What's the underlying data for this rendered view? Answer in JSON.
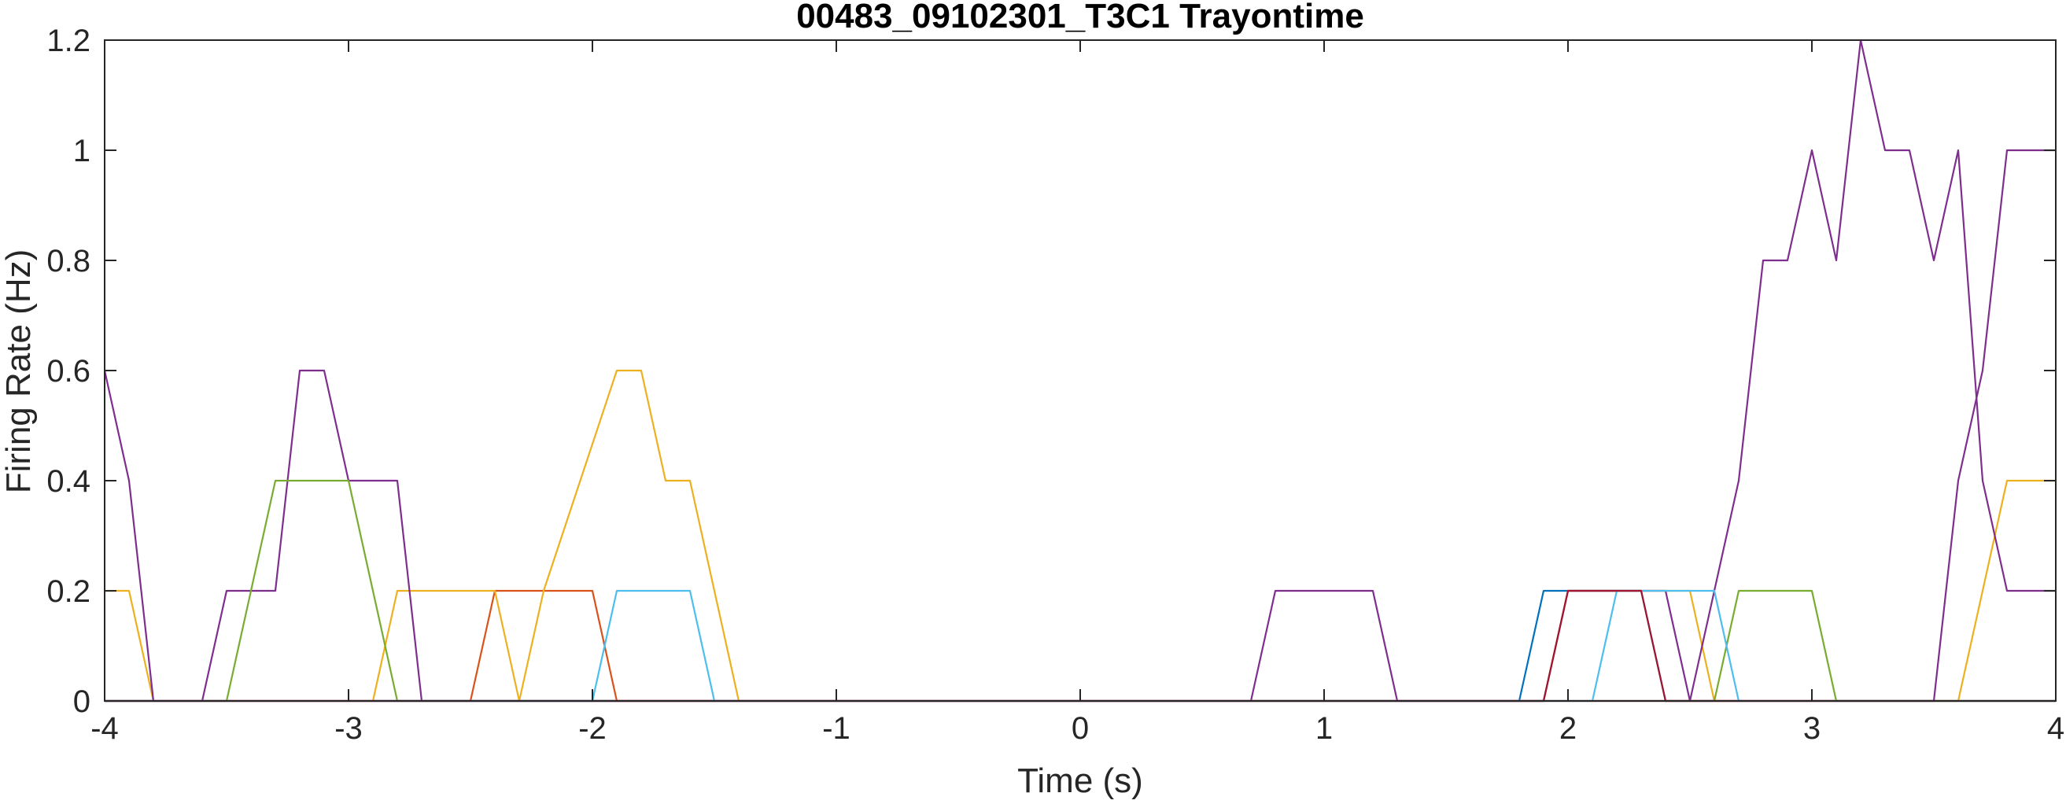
{
  "chart_data": {
    "type": "line",
    "title": "00483_09102301_T3C1 Trayontime",
    "xlabel": "Time (s)",
    "ylabel": "Firing Rate (Hz)",
    "xlim": [
      -4,
      4
    ],
    "ylim": [
      0,
      1.2
    ],
    "xticks": [
      -4,
      -3,
      -2,
      -1,
      0,
      1,
      2,
      3,
      4
    ],
    "yticks": [
      0,
      0.2,
      0.4,
      0.6,
      0.8,
      1,
      1.2
    ],
    "xtick_labels": [
      "-4",
      "-3",
      "-2",
      "-1",
      "0",
      "1",
      "2",
      "3",
      "4"
    ],
    "ytick_labels": [
      "0",
      "0.2",
      "0.4",
      "0.6",
      "0.8",
      "1",
      "1.2"
    ],
    "grid": false,
    "box": true,
    "series": [
      {
        "color": "#0072BD",
        "x": [
          -4,
          1.8,
          1.9,
          2.3,
          2.4,
          4
        ],
        "y": [
          0,
          0,
          0.2,
          0.2,
          0,
          0
        ]
      },
      {
        "color": "#D95319",
        "x": [
          -4,
          -2.5,
          -2.4,
          -2.2,
          -2.1,
          -2.0,
          -1.9,
          4
        ],
        "y": [
          0,
          0,
          0.2,
          0.2,
          0.2,
          0.2,
          0,
          0
        ]
      },
      {
        "color": "#EDB120",
        "x": [
          -4,
          -3.9,
          -3.8,
          -2.9,
          -2.8,
          -2.4,
          -2.3,
          -2.2,
          -1.9,
          -1.8,
          -1.7,
          -1.6,
          -1.4,
          1.9,
          2.0,
          2.1,
          2.3,
          2.5,
          2.6,
          3.6,
          3.7,
          3.8,
          4
        ],
        "y": [
          0.2,
          0.2,
          0,
          0,
          0.2,
          0.2,
          0,
          0.2,
          0.6,
          0.6,
          0.4,
          0.4,
          0,
          0,
          0.2,
          0.2,
          0.2,
          0.2,
          0,
          0,
          0.2,
          0.4,
          0.4
        ]
      },
      {
        "color": "#7E2F8E",
        "x": [
          -4,
          -3.9,
          -3.8,
          -3.6,
          -3.5,
          -3.3,
          -3.2,
          -3.1,
          -3.0,
          -2.8,
          -2.7,
          0.7,
          0.8,
          1.2,
          1.3,
          1.9,
          2.0,
          2.2,
          2.3,
          2.4,
          2.5,
          2.6,
          2.7,
          2.8,
          2.9,
          3.0,
          3.1,
          3.2,
          3.3,
          3.4,
          3.5,
          3.6,
          3.7,
          3.8,
          4
        ],
        "y": [
          0.6,
          0.4,
          0,
          0,
          0.2,
          0.2,
          0.6,
          0.6,
          0.4,
          0.4,
          0,
          0,
          0.2,
          0.2,
          0,
          0,
          0.2,
          0.2,
          0.2,
          0.2,
          0,
          0.2,
          0.4,
          0.8,
          0.8,
          1.0,
          0.8,
          1.2,
          1.0,
          1.0,
          0.8,
          1.0,
          0.4,
          0.2,
          0.2
        ]
      },
      {
        "color": "#77AC30",
        "x": [
          -4,
          -3.5,
          -3.3,
          -3.0,
          -2.9,
          -2.8,
          2.6,
          2.7,
          3.0,
          3.1,
          4
        ],
        "y": [
          0,
          0,
          0.4,
          0.4,
          0.2,
          0,
          0,
          0.2,
          0.2,
          0,
          0
        ]
      },
      {
        "color": "#4DBEEE",
        "x": [
          -4,
          -2.0,
          -1.9,
          -1.6,
          -1.5,
          2.1,
          2.2,
          2.6,
          2.7,
          4
        ],
        "y": [
          0,
          0,
          0.2,
          0.2,
          0,
          0,
          0.2,
          0.2,
          0,
          0
        ]
      },
      {
        "color": "#A2142F",
        "x": [
          -4,
          1.9,
          2.0,
          2.3,
          2.4,
          4
        ],
        "y": [
          0,
          0,
          0.2,
          0.2,
          0,
          0
        ]
      },
      {
        "color": "#7E2F8E",
        "x": [
          -4,
          3.5,
          3.6,
          3.7,
          3.8,
          4
        ],
        "y": [
          0,
          0,
          0.4,
          0.6,
          1.0,
          1.0
        ]
      }
    ]
  }
}
